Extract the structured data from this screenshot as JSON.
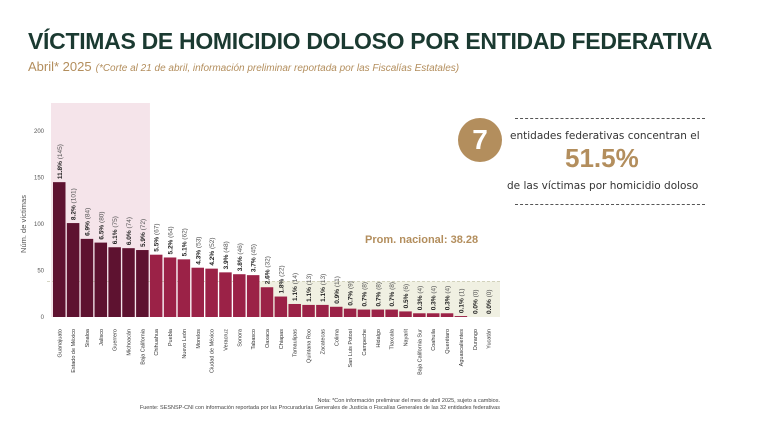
{
  "header": {
    "title": "VÍCTIMAS DE HOMICIDIO DOLOSO POR ENTIDAD FEDERATIVA",
    "subtitle": "Abril* 2025",
    "subtitle_note": "(*Corte al 21 de abril, información preliminar reportada por las Fiscalías Estatales)"
  },
  "panel": {
    "number": "7",
    "line1": "entidades federativas concentran el",
    "percent": "51.5%",
    "line2": "de las víctimas por homicidio doloso"
  },
  "notes": {
    "note": "Nota: *Con información preliminar del mes de abril 2025, sujeto a cambios.",
    "source": "Fuente: SESNSP-CNI con información reportada por las Procuradurías Generales de Justicia o Fiscalías Generales de las 32 entidades federativas"
  },
  "chart_data": {
    "type": "bar",
    "ylabel": "Núm. de víctimas",
    "ylim": [
      0,
      220
    ],
    "yticks": [
      0,
      50,
      100,
      150,
      200
    ],
    "average_label": "Prom. nacional: 38.28",
    "average": 38.28,
    "highlight_count": 7,
    "colors": {
      "highlight": "#5e1230",
      "normal": "#9b2247",
      "highlight_bg": "#f5e4ea",
      "below_avg_bg": "#f0f0e2",
      "accent": "#b38e5d"
    },
    "categories": [
      "Guanajuato",
      "Estado de México",
      "Sinaloa",
      "Jalisco",
      "Guerrero",
      "Michoacán",
      "Baja California",
      "Chihuahua",
      "Puebla",
      "Nuevo León",
      "Morelos",
      "Ciudad de México",
      "Veracruz",
      "Sonora",
      "Tabasco",
      "Oaxaca",
      "Chiapas",
      "Tamaulipas",
      "Quintana Roo",
      "Zacatecas",
      "Colima",
      "San Luis Potosí",
      "Campeche",
      "Hidalgo",
      "Tlaxcala",
      "Nayarit",
      "Baja California Sur",
      "Coahuila",
      "Querétaro",
      "Aguascalientes",
      "Durango",
      "Yucatán"
    ],
    "values": [
      145,
      101,
      84,
      80,
      75,
      74,
      72,
      67,
      64,
      62,
      53,
      52,
      48,
      46,
      45,
      32,
      22,
      14,
      13,
      13,
      11,
      9,
      8,
      8,
      8,
      6,
      4,
      4,
      4,
      1,
      0,
      0
    ],
    "percents": [
      "11.8%",
      "8.2%",
      "6.9%",
      "6.5%",
      "6.1%",
      "6.0%",
      "5.9%",
      "5.5%",
      "5.2%",
      "5.1%",
      "4.3%",
      "4.2%",
      "3.9%",
      "3.8%",
      "3.7%",
      "2.6%",
      "1.8%",
      "1.1%",
      "1.1%",
      "1.1%",
      "0.9%",
      "0.7%",
      "0.7%",
      "0.7%",
      "0.7%",
      "0.5%",
      "0.3%",
      "0.3%",
      "0.3%",
      "0.1%",
      "0.0%",
      "0.0%"
    ]
  }
}
